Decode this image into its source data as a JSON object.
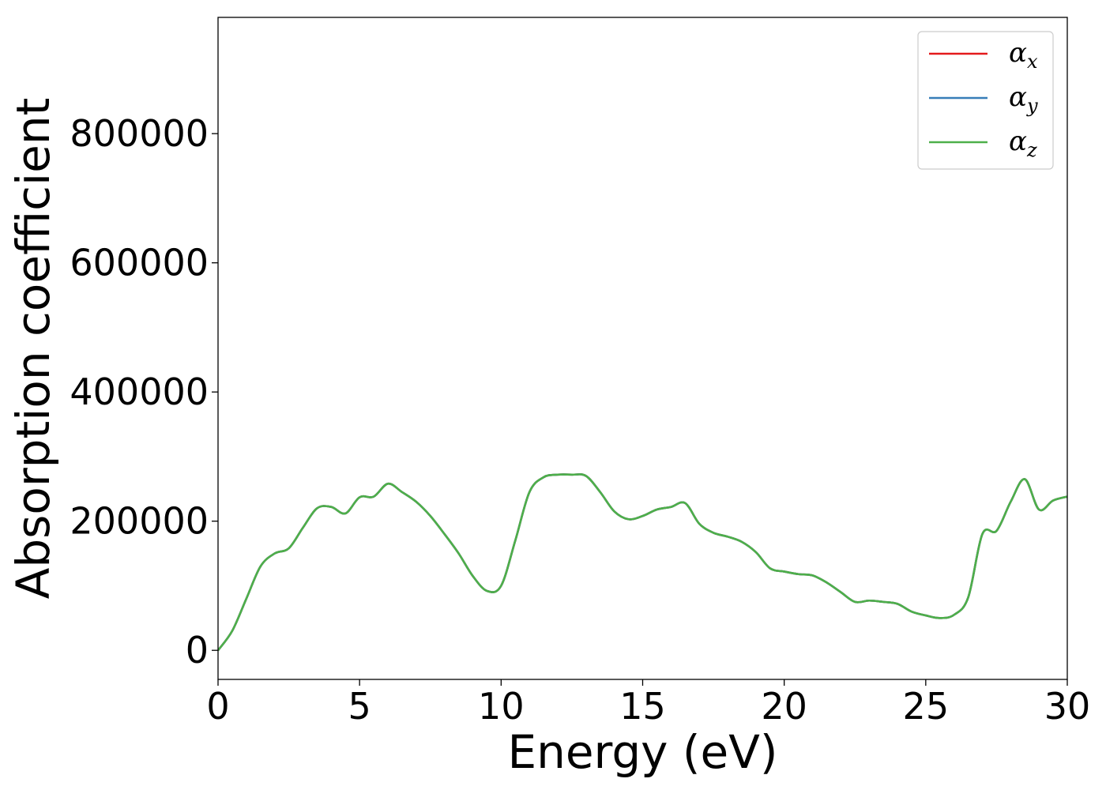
{
  "chart_data": {
    "type": "line",
    "xlabel": "Energy (eV)",
    "ylabel": "Absorption coefficient",
    "xlim": [
      0,
      30
    ],
    "ylim": [
      -45000,
      980000
    ],
    "xticks": [
      0,
      5,
      10,
      15,
      20,
      25,
      30
    ],
    "xtick_labels": [
      "0",
      "5",
      "10",
      "15",
      "20",
      "25",
      "30"
    ],
    "yticks": [
      0,
      200000,
      400000,
      600000,
      800000
    ],
    "ytick_labels": [
      "0",
      "200000",
      "400000",
      "600000",
      "800000"
    ],
    "grid": false,
    "legend_position": "top-right",
    "x": [
      0,
      0.5,
      1.0,
      1.5,
      2.0,
      2.5,
      3.0,
      3.5,
      4.0,
      4.5,
      5.0,
      5.5,
      6.0,
      6.5,
      7.0,
      7.5,
      8.0,
      8.5,
      9.0,
      9.5,
      10.0,
      10.5,
      11.0,
      11.5,
      12.0,
      12.5,
      13.0,
      13.5,
      14.0,
      14.5,
      15.0,
      15.5,
      16.0,
      16.5,
      17.0,
      17.5,
      18.0,
      18.5,
      19.0,
      19.5,
      20.0,
      20.5,
      21.0,
      21.5,
      22.0,
      22.5,
      23.0,
      23.5,
      24.0,
      24.5,
      25.0,
      25.5,
      26.0,
      26.5,
      27.0,
      27.5,
      28.0,
      28.5,
      29.0,
      29.5,
      30.0
    ],
    "series": [
      {
        "name": "α_x",
        "label_main": "α",
        "label_sub": "x",
        "color": "#e41a1c",
        "values": [
          0,
          30000,
          80000,
          130000,
          150000,
          158000,
          190000,
          220000,
          222000,
          212000,
          237000,
          238000,
          258000,
          245000,
          230000,
          208000,
          180000,
          150000,
          115000,
          92000,
          100000,
          170000,
          245000,
          268000,
          272000,
          272000,
          270000,
          245000,
          215000,
          203000,
          208000,
          218000,
          222000,
          228000,
          196000,
          182000,
          176000,
          168000,
          152000,
          127000,
          122000,
          118000,
          116000,
          105000,
          90000,
          75000,
          77000,
          75000,
          72000,
          60000,
          54000,
          50000,
          55000,
          82000,
          180000,
          185000,
          230000,
          265000,
          218000,
          232000,
          238000
        ]
      },
      {
        "name": "α_y",
        "label_main": "α",
        "label_sub": "y",
        "color": "#377eb8",
        "values": [
          0,
          30000,
          80000,
          130000,
          150000,
          158000,
          190000,
          220000,
          222000,
          212000,
          237000,
          238000,
          258000,
          245000,
          230000,
          208000,
          180000,
          150000,
          115000,
          92000,
          100000,
          170000,
          245000,
          268000,
          272000,
          272000,
          270000,
          245000,
          215000,
          203000,
          208000,
          218000,
          222000,
          228000,
          196000,
          182000,
          176000,
          168000,
          152000,
          127000,
          122000,
          118000,
          116000,
          105000,
          90000,
          75000,
          77000,
          75000,
          72000,
          60000,
          54000,
          50000,
          55000,
          82000,
          180000,
          185000,
          230000,
          265000,
          218000,
          232000,
          238000
        ]
      },
      {
        "name": "α_z",
        "label_main": "α",
        "label_sub": "z",
        "color": "#4daf4a",
        "values": [
          0,
          30000,
          80000,
          130000,
          150000,
          158000,
          190000,
          220000,
          222000,
          212000,
          237000,
          238000,
          258000,
          245000,
          230000,
          208000,
          180000,
          150000,
          115000,
          92000,
          100000,
          170000,
          245000,
          268000,
          272000,
          272000,
          270000,
          245000,
          215000,
          203000,
          208000,
          218000,
          222000,
          228000,
          196000,
          182000,
          176000,
          168000,
          152000,
          127000,
          122000,
          118000,
          116000,
          105000,
          90000,
          75000,
          77000,
          75000,
          72000,
          60000,
          54000,
          50000,
          55000,
          82000,
          180000,
          185000,
          230000,
          265000,
          218000,
          232000,
          238000
        ]
      }
    ]
  }
}
